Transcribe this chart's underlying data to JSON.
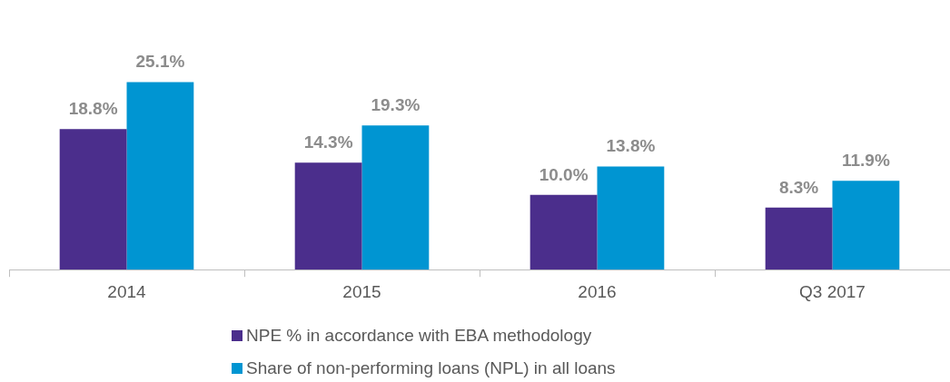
{
  "chart_data": {
    "type": "bar",
    "categories": [
      "2014",
      "2015",
      "2016",
      "Q3 2017"
    ],
    "series": [
      {
        "name": "NPE % in accordance with EBA methodology",
        "color": "#4b2e8c",
        "values": [
          18.8,
          14.3,
          10.0,
          8.3
        ],
        "value_labels": [
          "18.8%",
          "14.3%",
          "10.0%",
          "8.3%"
        ]
      },
      {
        "name": "Share of non-performing loans (NPL) in all loans",
        "color": "#0095d2",
        "values": [
          25.1,
          19.3,
          13.8,
          11.9
        ],
        "value_labels": [
          "25.1%",
          "19.3%",
          "13.8%",
          "11.9%"
        ]
      }
    ],
    "legend": "bottom",
    "grid": false
  }
}
